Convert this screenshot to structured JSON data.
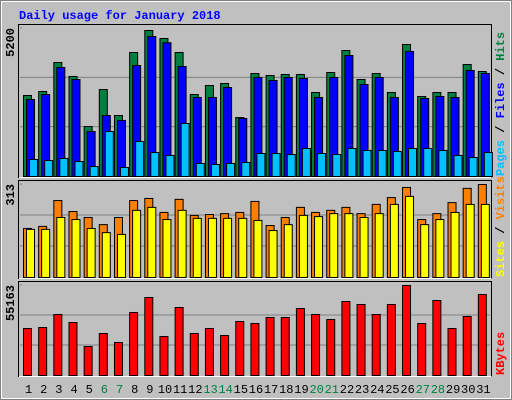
{
  "chart_data": [
    {
      "type": "bar",
      "title": "Daily usage for January 2018",
      "legend_separator": "/",
      "ylim": [
        0,
        5200
      ],
      "yticks": [
        5200
      ],
      "series": [
        {
          "name": "Pages",
          "color": "#00C0FF",
          "values": [
            597,
            562,
            633,
            527,
            351,
            1581,
            316,
            1230,
            843,
            738,
            1862,
            457,
            422,
            457,
            492,
            808,
            808,
            773,
            984,
            808,
            773,
            984,
            914,
            914,
            879,
            984,
            984,
            914,
            738,
            668,
            843
          ]
        },
        {
          "name": "Files",
          "color": "#0000FF",
          "values": [
            2705,
            2881,
            3830,
            3408,
            1581,
            2143,
            1968,
            3900,
            4919,
            4700,
            3865,
            2776,
            2776,
            3127,
            2038,
            3479,
            3373,
            3479,
            3444,
            2776,
            3479,
            4252,
            3233,
            3479,
            2776,
            4392,
            2741,
            2811,
            2776,
            3725,
            3619
          ]
        },
        {
          "name": "Hits",
          "color": "#008040",
          "values": [
            2846,
            2987,
            4006,
            3514,
            1757,
            3057,
            2143,
            4357,
            5130,
            4849,
            4357,
            2881,
            3198,
            3268,
            2073,
            3619,
            3549,
            3584,
            3584,
            2952,
            3654,
            4427,
            3408,
            3619,
            2952,
            4638,
            2811,
            2952,
            2952,
            3935,
            3689
          ]
        }
      ]
    },
    {
      "type": "bar",
      "legend_separator": "/",
      "ylim": [
        0,
        313
      ],
      "yticks": [
        313
      ],
      "series": [
        {
          "name": "Sites",
          "color": "#FFFF00",
          "values": [
            162,
            162,
            202,
            195,
            165,
            151,
            145,
            226,
            236,
            195,
            226,
            199,
            199,
            199,
            199,
            192,
            158,
            178,
            209,
            205,
            215,
            215,
            202,
            215,
            246,
            273,
            178,
            195,
            219,
            246,
            246
          ]
        },
        {
          "name": "Visits",
          "color": "#FF8000",
          "values": [
            165,
            172,
            259,
            222,
            202,
            178,
            202,
            259,
            266,
            219,
            263,
            209,
            212,
            215,
            219,
            256,
            175,
            202,
            236,
            219,
            226,
            236,
            215,
            246,
            269,
            303,
            195,
            215,
            252,
            300,
            313
          ]
        }
      ]
    },
    {
      "type": "bar",
      "ylim": [
        0,
        55163
      ],
      "yticks": [
        55163
      ],
      "categories": [
        "1",
        "2",
        "3",
        "4",
        "5",
        "6",
        "7",
        "8",
        "9",
        "10",
        "11",
        "12",
        "13",
        "14",
        "15",
        "16",
        "17",
        "18",
        "19",
        "20",
        "21",
        "22",
        "23",
        "24",
        "25",
        "26",
        "27",
        "28",
        "29",
        "30",
        "31"
      ],
      "category_colors": [
        "#000000",
        "#000000",
        "#000000",
        "#000000",
        "#000000",
        "#008040",
        "#008040",
        "#000000",
        "#000000",
        "#000000",
        "#000000",
        "#000000",
        "#008040",
        "#008040",
        "#000000",
        "#000000",
        "#000000",
        "#000000",
        "#000000",
        "#008040",
        "#008040",
        "#000000",
        "#000000",
        "#000000",
        "#000000",
        "#000000",
        "#008040",
        "#008040",
        "#000000",
        "#000000",
        "#000000"
      ],
      "series": [
        {
          "name": "KBytes",
          "color": "#FF0000",
          "values": [
            28811,
            29424,
            37393,
            32489,
            17777,
            25746,
            20229,
            38619,
            47814,
            23907,
            41684,
            25746,
            28811,
            24520,
            33102,
            31876,
            35554,
            35554,
            41071,
            37393,
            34328,
            45362,
            43523,
            37393,
            43523,
            55163,
            31876,
            45975,
            28811,
            36167,
            49653
          ]
        }
      ]
    }
  ]
}
